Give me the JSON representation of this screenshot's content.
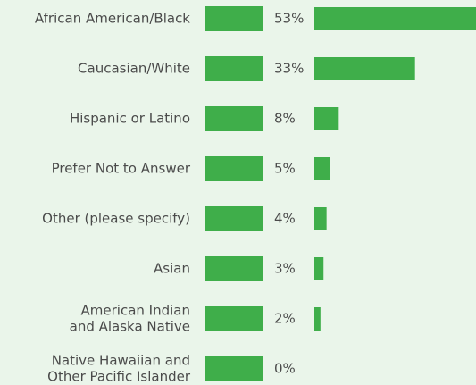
{
  "colors": {
    "background": "#eaf5ea",
    "bar": "#3fae4a",
    "text": "#4a4a4a"
  },
  "chart_data": {
    "type": "bar",
    "orientation": "horizontal",
    "unit": "%",
    "categories": [
      [
        "African American/Black"
      ],
      [
        "Caucasian/White"
      ],
      [
        "Hispanic or Latino"
      ],
      [
        "Prefer Not to Answer"
      ],
      [
        "Other (please specify)"
      ],
      [
        "Asian"
      ],
      [
        "American Indian",
        "and Alaska Native"
      ],
      [
        "Native Hawaiian and",
        "Other Pacific Islander"
      ]
    ],
    "values": [
      53,
      33,
      8,
      5,
      4,
      3,
      2,
      0
    ],
    "value_labels": [
      "53%",
      "33%",
      "8%",
      "5%",
      "4%",
      "3%",
      "2%",
      "0%"
    ],
    "xlim": [
      0,
      53
    ],
    "grid": false,
    "legend": "none"
  }
}
